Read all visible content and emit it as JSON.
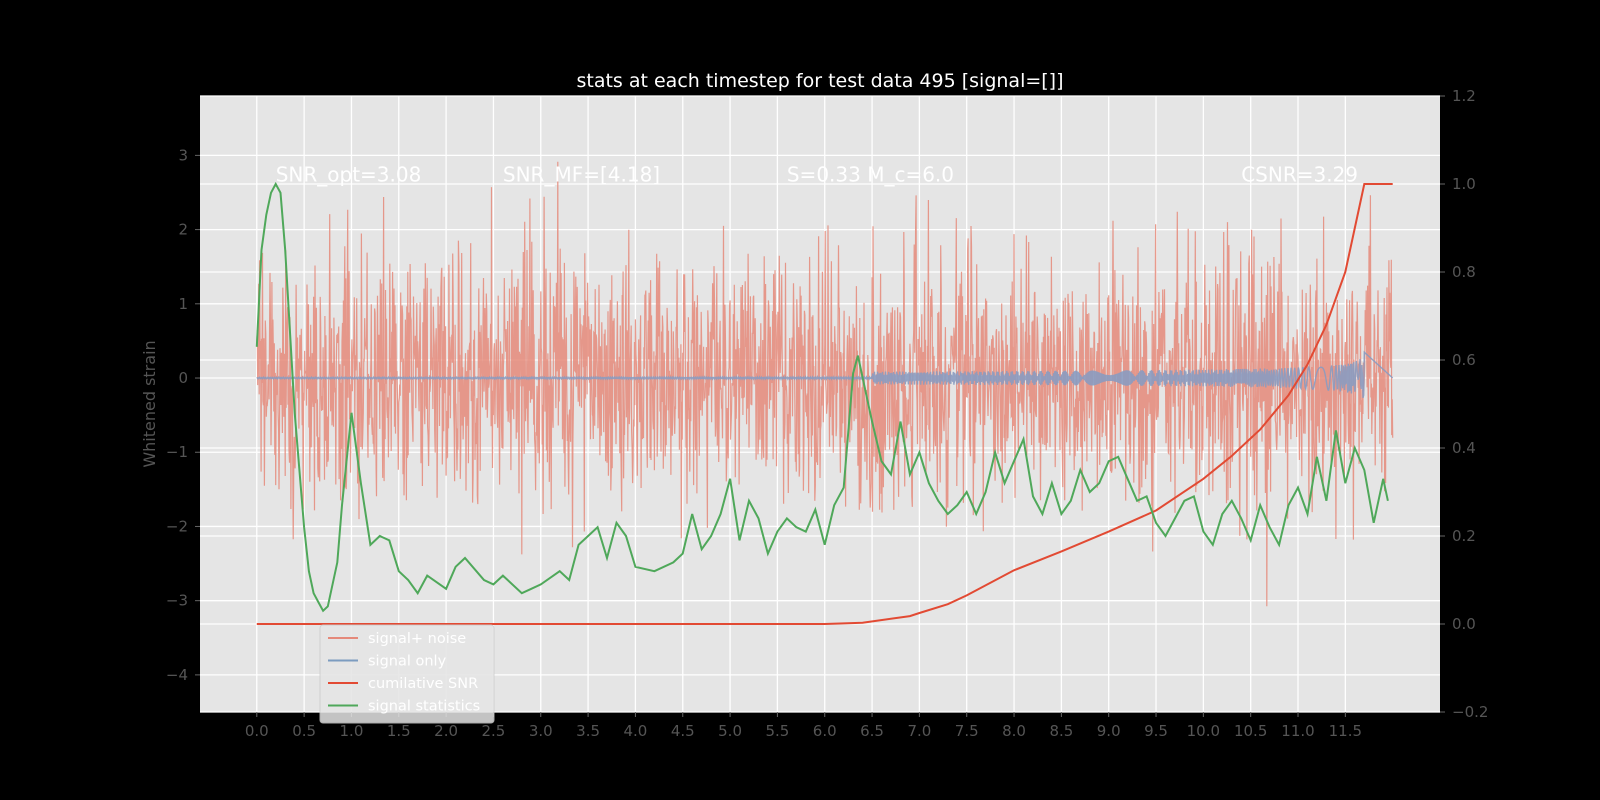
{
  "chart_data": {
    "type": "line",
    "title": "stats at each timestep for test data 495 [signal=[]]",
    "ylabel": "Whitened strain",
    "xlim": [
      -0.6,
      12.5
    ],
    "ylim": [
      -4.5,
      3.8
    ],
    "y2lim": [
      -0.2,
      1.2
    ],
    "grid": true,
    "x_ticks": [
      "0.0",
      "0.5",
      "1.0",
      "1.5",
      "2.0",
      "2.5",
      "3.0",
      "3.5",
      "4.0",
      "4.5",
      "5.0",
      "5.5",
      "6.0",
      "6.5",
      "7.0",
      "7.5",
      "8.0",
      "8.5",
      "9.0",
      "9.5",
      "10.0",
      "10.5",
      "11.0",
      "11.5"
    ],
    "y_ticks": [
      "3",
      "2",
      "1",
      "0",
      "−1",
      "−2",
      "−3",
      "−4"
    ],
    "y2_ticks": [
      "1.2",
      "1.0",
      "0.8",
      "0.6",
      "0.4",
      "0.2",
      "0.0",
      "−0.2"
    ],
    "annotations": [
      {
        "text": "SNR_opt=3.08",
        "x": 0.2
      },
      {
        "text": "SNR_MF=[4.18]",
        "x": 2.6
      },
      {
        "text": "S=0.33   M_c=6.0",
        "x": 5.6
      },
      {
        "text": "CSNR=3.29",
        "x": 10.4
      }
    ],
    "legend_position": "lower-left",
    "legend": [
      {
        "label": "signal+ noise",
        "color": "#E5897A"
      },
      {
        "label": "signal only",
        "color": "#7C9CC0"
      },
      {
        "label": "cumilative SNR",
        "color": "#E24A33"
      },
      {
        "label": "signal statistics",
        "color": "#4FA85A"
      }
    ],
    "series": [
      {
        "name": "signal+ noise",
        "axis": "left",
        "description_kind": "noise",
        "x_range": [
          0.0,
          12.0
        ],
        "std": 0.85,
        "max": 3.45,
        "min": -3.4
      },
      {
        "name": "signal only",
        "axis": "left",
        "kind": "chirp",
        "x_range": [
          0.0,
          11.7
        ],
        "peak_amplitude": 0.35
      },
      {
        "name": "cumilative SNR",
        "axis": "right",
        "x": [
          0.0,
          6.0,
          6.4,
          6.9,
          7.0,
          7.3,
          7.5,
          8.0,
          8.5,
          9.0,
          9.5,
          10.0,
          10.3,
          10.6,
          10.9,
          11.1,
          11.3,
          11.5,
          11.6,
          11.7,
          12.0
        ],
        "y": [
          0.0,
          0.0,
          0.003,
          0.018,
          0.025,
          0.045,
          0.065,
          0.122,
          0.165,
          0.21,
          0.258,
          0.33,
          0.382,
          0.442,
          0.52,
          0.59,
          0.68,
          0.8,
          0.9,
          1.0,
          1.0
        ]
      },
      {
        "name": "signal statistics",
        "axis": "right",
        "x": [
          0.0,
          0.05,
          0.1,
          0.15,
          0.2,
          0.25,
          0.3,
          0.4,
          0.5,
          0.55,
          0.6,
          0.65,
          0.7,
          0.75,
          0.85,
          0.9,
          1.0,
          1.1,
          1.2,
          1.3,
          1.4,
          1.5,
          1.6,
          1.7,
          1.8,
          2.0,
          2.1,
          2.2,
          2.4,
          2.5,
          2.6,
          2.8,
          2.9,
          3.0,
          3.2,
          3.3,
          3.4,
          3.5,
          3.6,
          3.7,
          3.8,
          3.9,
          4.0,
          4.2,
          4.4,
          4.5,
          4.6,
          4.7,
          4.8,
          4.9,
          5.0,
          5.1,
          5.2,
          5.3,
          5.4,
          5.5,
          5.6,
          5.7,
          5.8,
          5.9,
          6.0,
          6.1,
          6.2,
          6.3,
          6.35,
          6.45,
          6.5,
          6.6,
          6.7,
          6.8,
          6.9,
          7.0,
          7.1,
          7.2,
          7.3,
          7.4,
          7.5,
          7.6,
          7.7,
          7.8,
          7.9,
          8.0,
          8.1,
          8.2,
          8.3,
          8.4,
          8.5,
          8.6,
          8.7,
          8.8,
          8.9,
          9.0,
          9.1,
          9.2,
          9.3,
          9.4,
          9.5,
          9.6,
          9.7,
          9.8,
          9.9,
          10.0,
          10.1,
          10.2,
          10.3,
          10.4,
          10.5,
          10.6,
          10.7,
          10.8,
          10.9,
          11.0,
          11.1,
          11.2,
          11.3,
          11.4,
          11.5,
          11.6,
          11.7,
          11.8,
          11.9,
          11.95
        ],
        "y": [
          0.63,
          0.85,
          0.93,
          0.98,
          1.0,
          0.98,
          0.85,
          0.48,
          0.22,
          0.12,
          0.07,
          0.05,
          0.03,
          0.04,
          0.14,
          0.27,
          0.48,
          0.32,
          0.18,
          0.2,
          0.19,
          0.12,
          0.1,
          0.07,
          0.11,
          0.08,
          0.13,
          0.15,
          0.1,
          0.09,
          0.11,
          0.07,
          0.08,
          0.09,
          0.12,
          0.1,
          0.18,
          0.2,
          0.22,
          0.15,
          0.23,
          0.2,
          0.13,
          0.12,
          0.14,
          0.16,
          0.25,
          0.17,
          0.2,
          0.25,
          0.33,
          0.19,
          0.28,
          0.24,
          0.16,
          0.21,
          0.24,
          0.22,
          0.21,
          0.26,
          0.18,
          0.27,
          0.31,
          0.57,
          0.61,
          0.51,
          0.46,
          0.37,
          0.34,
          0.46,
          0.34,
          0.39,
          0.32,
          0.28,
          0.25,
          0.27,
          0.3,
          0.25,
          0.3,
          0.39,
          0.32,
          0.37,
          0.42,
          0.29,
          0.25,
          0.32,
          0.25,
          0.28,
          0.35,
          0.3,
          0.32,
          0.37,
          0.38,
          0.33,
          0.28,
          0.29,
          0.23,
          0.2,
          0.24,
          0.28,
          0.29,
          0.21,
          0.18,
          0.25,
          0.28,
          0.24,
          0.19,
          0.27,
          0.22,
          0.18,
          0.27,
          0.31,
          0.25,
          0.38,
          0.28,
          0.44,
          0.32,
          0.4,
          0.35,
          0.23,
          0.33,
          0.28
        ]
      }
    ]
  }
}
